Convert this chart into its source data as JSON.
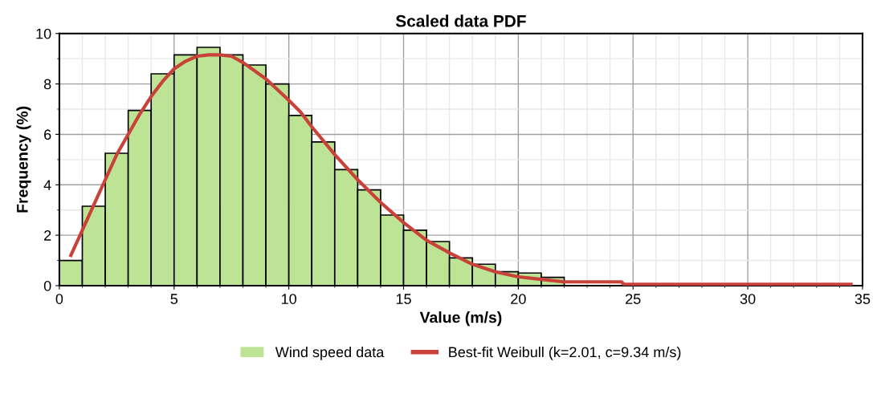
{
  "chart_data": {
    "type": "histogram",
    "title": "Scaled data PDF",
    "xlabel": "Value (m/s)",
    "ylabel": "Frequency (%)",
    "bins": [
      0,
      1,
      2,
      3,
      4,
      5,
      6,
      7,
      8,
      9,
      10,
      11,
      12,
      13,
      14,
      15,
      16,
      17,
      18,
      19,
      20,
      21,
      22,
      23,
      24
    ],
    "series": [
      {
        "name": "Wind speed data",
        "color": "#bde394",
        "values": [
          1.0,
          3.15,
          5.25,
          6.95,
          8.4,
          9.15,
          9.45,
          9.15,
          8.75,
          8.0,
          6.75,
          5.7,
          4.6,
          3.8,
          2.8,
          2.2,
          1.75,
          1.1,
          0.85,
          0.55,
          0.5,
          0.33,
          null,
          null
        ]
      },
      {
        "name": "Best-fit Weibull (k=2.01, c=9.34 m/s)",
        "type": "line",
        "color": "#c8423a",
        "x": [
          0.5,
          1,
          1.5,
          2,
          2.5,
          3,
          3.5,
          4,
          4.5,
          5,
          5.5,
          6,
          6.5,
          7,
          7.5,
          8,
          9,
          10,
          10.5,
          11,
          12,
          13,
          14,
          15,
          16,
          17,
          18,
          19,
          20,
          21,
          22,
          24.5,
          24.6,
          34.5
        ],
        "values": [
          1.2,
          2.2,
          3.2,
          4.2,
          5.2,
          6.0,
          6.8,
          7.5,
          8.1,
          8.6,
          8.9,
          9.1,
          9.15,
          9.15,
          9.1,
          8.85,
          8.2,
          7.35,
          6.9,
          6.3,
          5.2,
          4.2,
          3.3,
          2.5,
          1.8,
          1.3,
          0.85,
          0.55,
          0.35,
          0.25,
          0.15,
          0.15,
          0.05,
          0.05
        ]
      }
    ],
    "xlim": [
      0,
      35
    ],
    "xticks": [
      0,
      5,
      10,
      15,
      20,
      25,
      30,
      35
    ],
    "ylim": [
      0,
      10
    ],
    "yticks": [
      0,
      2,
      4,
      6,
      8,
      10
    ],
    "grid": true,
    "legend": "bottom"
  }
}
